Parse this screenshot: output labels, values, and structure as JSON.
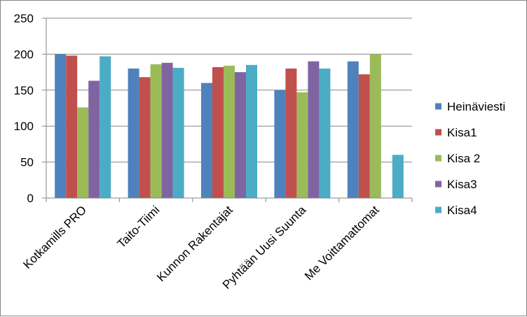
{
  "chart_data": {
    "type": "bar",
    "categories": [
      "Kotkamills PRO",
      "Taito-Tiimi",
      "Kunnon Rakentajat",
      "Pyhtään Uusi Suunta",
      "Me Voittamattomat"
    ],
    "series": [
      {
        "name": "Heinäviesti",
        "color": "#4F81BD",
        "values": [
          200,
          180,
          160,
          150,
          190
        ]
      },
      {
        "name": "Kisa1",
        "color": "#C0504D",
        "values": [
          198,
          168,
          182,
          180,
          172
        ]
      },
      {
        "name": "Kisa 2",
        "color": "#9BBB59",
        "values": [
          126,
          186,
          184,
          147,
          200
        ]
      },
      {
        "name": "Kisa3",
        "color": "#8064A2",
        "values": [
          163,
          188,
          175,
          190,
          0
        ]
      },
      {
        "name": "Kisa4",
        "color": "#4BACC6",
        "values": [
          197,
          181,
          185,
          180,
          60
        ]
      }
    ],
    "y_ticks": [
      "0",
      "50",
      "100",
      "150",
      "200",
      "250"
    ],
    "ylim": [
      0,
      250
    ],
    "grid": true,
    "legend_position": "right",
    "title": "",
    "xlabel": "",
    "ylabel": ""
  }
}
